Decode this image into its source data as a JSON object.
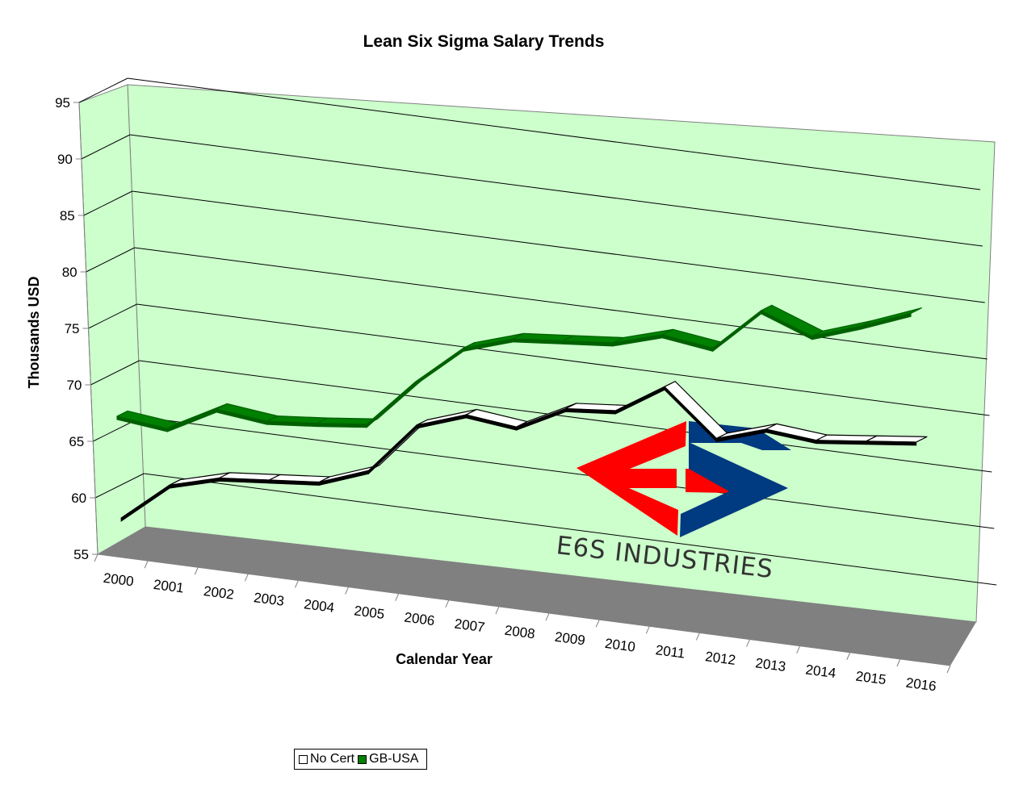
{
  "chart_data": {
    "type": "line",
    "title": "Lean Six Sigma Salary Trends",
    "xlabel": "Calendar Year",
    "ylabel": "Thousands USD",
    "categories": [
      "2000",
      "2001",
      "2002",
      "2003",
      "2004",
      "2005",
      "2006",
      "2007",
      "2008",
      "2009",
      "2010",
      "2011",
      "2012",
      "2013",
      "2014",
      "2015",
      "2016"
    ],
    "ylim": [
      55,
      95
    ],
    "yticks": [
      55,
      60,
      65,
      70,
      75,
      80,
      85,
      90,
      95
    ],
    "grid": true,
    "legend_position": "bottom",
    "style": "3d",
    "series": [
      {
        "name": "No Cert",
        "color": "#ffffff",
        "outline": "#000000",
        "values": [
          58.5,
          62,
          63.2,
          63.6,
          64,
          65.6,
          70.2,
          71.7,
          71.2,
          73.4,
          73.8,
          76.5,
          72.5,
          73.9,
          73.5,
          74,
          74.5
        ]
      },
      {
        "name": "GB-USA",
        "color": "#008000",
        "outline": "#006000",
        "values": [
          67.5,
          67,
          69.3,
          68.8,
          69.2,
          69.7,
          74,
          77.6,
          79,
          79.4,
          79.8,
          81.1,
          80.5,
          84.4,
          82.7,
          84.2,
          85.9
        ]
      }
    ]
  },
  "logo": {
    "text": "E6S INDUSTRIES",
    "red": "#ff0000",
    "blue": "#003a80"
  },
  "colors": {
    "wall": "#ccffcc",
    "floor": "#808080",
    "grid": "#000000"
  }
}
